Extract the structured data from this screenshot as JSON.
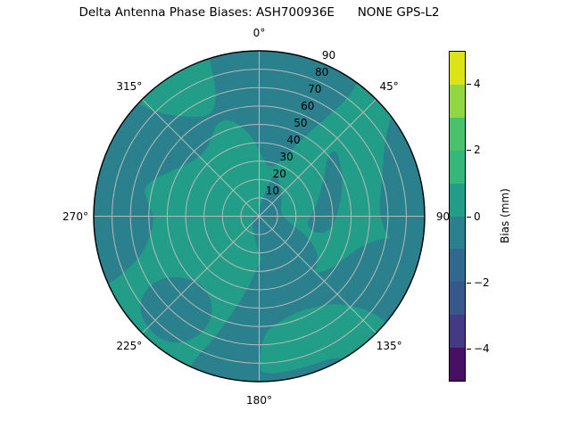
{
  "title": "Delta Antenna Phase Biases: ASH700936E      NONE GPS-L2",
  "chart_data": {
    "type": "polar_contour",
    "title": "Delta Antenna Phase Biases: ASH700936E      NONE GPS-L2",
    "angular_tick_labels": [
      "0°",
      "45°",
      "90",
      "135°",
      "180°",
      "225°",
      "270°",
      "315°"
    ],
    "angular_tick_angles_deg": [
      0,
      45,
      90,
      135,
      180,
      225,
      270,
      315
    ],
    "radial_tick_labels": [
      "10",
      "20",
      "30",
      "40",
      "50",
      "60",
      "70",
      "80",
      "90"
    ],
    "radial_tick_values": [
      10,
      20,
      30,
      40,
      50,
      60,
      70,
      80,
      90
    ],
    "radial_label_angle_deg": 22.5,
    "rmax": 90,
    "grid_rings": [
      10,
      20,
      30,
      40,
      50,
      60,
      70,
      80
    ],
    "spoke_angles_deg": [
      0,
      45,
      90,
      135,
      180,
      225,
      270,
      315
    ],
    "grid_on": true,
    "grid_color": "#b9b9b9",
    "outline_color": "#000000",
    "background_band": {
      "bias_range_mm": "0 to 1",
      "color": "#229e88"
    },
    "dark_band": {
      "bias_range_mm": "-1 to 0",
      "color": "#2a808c"
    },
    "value_range_note": "all plotted bias values lie between -1 and +1 mm (two filled contour bands visible)",
    "dark_regions": [
      {
        "name": "top-and-northwest-band-and-west-rim",
        "points": [
          [
            246,
            95
          ],
          [
            260,
            95
          ],
          [
            274,
            95
          ],
          [
            288,
            95
          ],
          [
            300,
            95
          ],
          [
            312,
            95
          ],
          [
            314,
            84
          ],
          [
            318,
            74
          ],
          [
            325,
            66
          ],
          [
            333,
            61
          ],
          [
            338,
            64
          ],
          [
            341,
            72
          ],
          [
            342,
            83
          ],
          [
            343,
            95
          ],
          [
            355,
            95
          ],
          [
            8,
            95
          ],
          [
            20,
            95
          ],
          [
            32,
            95
          ],
          [
            36,
            95
          ],
          [
            37,
            80
          ],
          [
            34,
            64
          ],
          [
            28,
            46
          ],
          [
            20,
            30
          ],
          [
            10,
            27
          ],
          [
            2,
            33
          ],
          [
            356,
            42
          ],
          [
            349,
            50
          ],
          [
            343,
            55
          ],
          [
            336,
            56
          ],
          [
            329,
            50
          ],
          [
            321,
            46
          ],
          [
            313,
            46
          ],
          [
            305,
            49
          ],
          [
            297,
            54
          ],
          [
            290,
            60
          ],
          [
            284,
            65
          ],
          [
            277,
            61
          ],
          [
            269,
            57
          ],
          [
            260,
            60
          ],
          [
            252,
            67
          ],
          [
            248,
            77
          ],
          [
            246,
            87
          ]
        ]
      },
      {
        "name": "east-rim-tongue",
        "points": [
          [
            53,
            95
          ],
          [
            65,
            95
          ],
          [
            80,
            95
          ],
          [
            95,
            95
          ],
          [
            104,
            95
          ],
          [
            104,
            82
          ],
          [
            100,
            72
          ],
          [
            92,
            66
          ],
          [
            83,
            66
          ],
          [
            73,
            70
          ],
          [
            63,
            76
          ],
          [
            56,
            84
          ],
          [
            53,
            90
          ]
        ]
      },
      {
        "name": "southeast-mass-with-pocket",
        "points": [
          [
            98,
            95
          ],
          [
            112,
            95
          ],
          [
            126,
            95
          ],
          [
            130,
            95
          ],
          [
            130,
            82
          ],
          [
            134,
            70
          ],
          [
            140,
            62
          ],
          [
            148,
            58
          ],
          [
            158,
            56
          ],
          [
            168,
            58
          ],
          [
            176,
            62
          ],
          [
            179,
            70
          ],
          [
            180,
            80
          ],
          [
            179,
            86
          ],
          [
            170,
            86
          ],
          [
            160,
            86
          ],
          [
            152,
            87
          ],
          [
            149,
            91
          ],
          [
            148,
            95
          ],
          [
            162,
            95
          ],
          [
            176,
            95
          ],
          [
            190,
            95
          ],
          [
            205,
            95
          ],
          [
            204,
            84
          ],
          [
            200,
            70
          ],
          [
            196,
            56
          ],
          [
            191,
            44
          ],
          [
            186,
            34
          ],
          [
            180,
            26
          ],
          [
            172,
            20
          ],
          [
            164,
            16
          ],
          [
            154,
            22
          ],
          [
            146,
            32
          ],
          [
            138,
            42
          ],
          [
            128,
            48
          ],
          [
            116,
            52
          ],
          [
            106,
            58
          ],
          [
            100,
            68
          ],
          [
            98,
            82
          ]
        ]
      },
      {
        "name": "center-wrap-and-south-tongue",
        "points": [
          [
            18,
            27
          ],
          [
            40,
            19
          ],
          [
            60,
            14
          ],
          [
            80,
            12
          ],
          [
            95,
            14
          ],
          [
            105,
            19
          ],
          [
            112,
            27
          ],
          [
            118,
            34
          ],
          [
            126,
            40
          ],
          [
            136,
            43
          ],
          [
            146,
            40
          ],
          [
            154,
            32
          ],
          [
            162,
            27
          ],
          [
            172,
            26
          ],
          [
            180,
            30
          ],
          [
            186,
            40
          ],
          [
            190,
            52
          ],
          [
            194,
            66
          ],
          [
            196,
            80
          ],
          [
            197,
            95
          ],
          [
            187,
            95
          ],
          [
            184,
            80
          ],
          [
            181,
            64
          ],
          [
            177,
            50
          ],
          [
            173,
            40
          ],
          [
            167,
            36
          ],
          [
            178,
            22
          ],
          [
            190,
            13
          ],
          [
            204,
            8
          ],
          [
            219,
            6
          ],
          [
            231,
            5
          ],
          [
            8,
            6
          ]
        ]
      },
      {
        "name": "northeast-arc-band",
        "points": [
          [
            49,
            56
          ],
          [
            62,
            51
          ],
          [
            74,
            47
          ],
          [
            86,
            43
          ],
          [
            95,
            41
          ],
          [
            103,
            38
          ],
          [
            107,
            32
          ],
          [
            101,
            26
          ],
          [
            90,
            28
          ],
          [
            78,
            32
          ],
          [
            66,
            37
          ],
          [
            55,
            44
          ],
          [
            48,
            50
          ]
        ]
      },
      {
        "name": "southwest-blob",
        "points": [
          [
            206,
            56
          ],
          [
            218,
            48
          ],
          [
            230,
            52
          ],
          [
            238,
            62
          ],
          [
            237,
            76
          ],
          [
            230,
            85
          ],
          [
            219,
            87
          ],
          [
            210,
            80
          ],
          [
            205,
            68
          ]
        ]
      }
    ],
    "colorbar": {
      "label": "Bias (mm)",
      "tick_labels": [
        "4",
        "2",
        "0",
        "−2",
        "−4"
      ],
      "tick_values": [
        4,
        2,
        0,
        -2,
        -4
      ],
      "vmin": -5,
      "vmax": 5,
      "segments_top_to_bottom": [
        "#dce319",
        "#90d743",
        "#4ac16d",
        "#35b779",
        "#229e88",
        "#2a808c",
        "#31688e",
        "#38588c",
        "#443a83",
        "#471063"
      ]
    }
  }
}
